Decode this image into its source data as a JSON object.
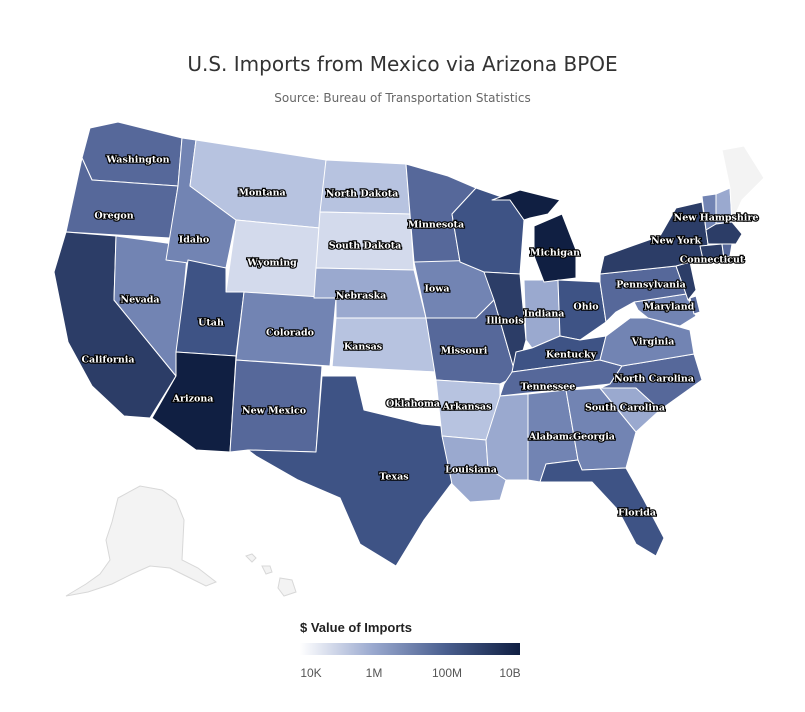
{
  "title": "U.S. Imports from Mexico via Arizona BPOE",
  "subtitle": "Source: Bureau of Transportation Statistics",
  "legend": {
    "title": "$ Value of Imports",
    "ticks": [
      "10K",
      "1M",
      "100M",
      "10B"
    ]
  },
  "colors": {
    "darkest": "#101f42",
    "dark": "#2c3d67",
    "midDark": "#3e5385",
    "mid": "#56689a",
    "midLight": "#7284b3",
    "light": "#9aa9cf",
    "lighter": "#b7c3e0",
    "lightest": "#d3daec",
    "none": "#ffffff",
    "noData": "#f3f3f3"
  },
  "states": {
    "washington": "Washington",
    "oregon": "Oregon",
    "california": "California",
    "nevada": "Nevada",
    "idaho": "Idaho",
    "montana": "Montana",
    "wyoming": "Wyoming",
    "utah": "Utah",
    "arizona": "Arizona",
    "colorado": "Colorado",
    "new_mexico": "New Mexico",
    "north_dakota": "North Dakota",
    "south_dakota": "South Dakota",
    "nebraska": "Nebraska",
    "kansas": "Kansas",
    "oklahoma": "Oklahoma",
    "texas": "Texas",
    "minnesota": "Minnesota",
    "iowa": "Iowa",
    "missouri": "Missouri",
    "arkansas": "Arkansas",
    "louisiana": "Louisiana",
    "illinois": "Illinois",
    "indiana": "Indiana",
    "michigan": "Michigan",
    "ohio": "Ohio",
    "kentucky": "Kentucky",
    "tennessee": "Tennessee",
    "alabama": "Alabama",
    "georgia": "Georgia",
    "florida": "Florida",
    "south_carolina": "South Carolina",
    "north_carolina": "North Carolina",
    "virginia": "Virginia",
    "maryland": "Maryland",
    "pennsylvania": "Pennsylvania",
    "new_york": "New York",
    "new_hampshire": "New Hampshire",
    "connecticut": "Connecticut"
  }
}
